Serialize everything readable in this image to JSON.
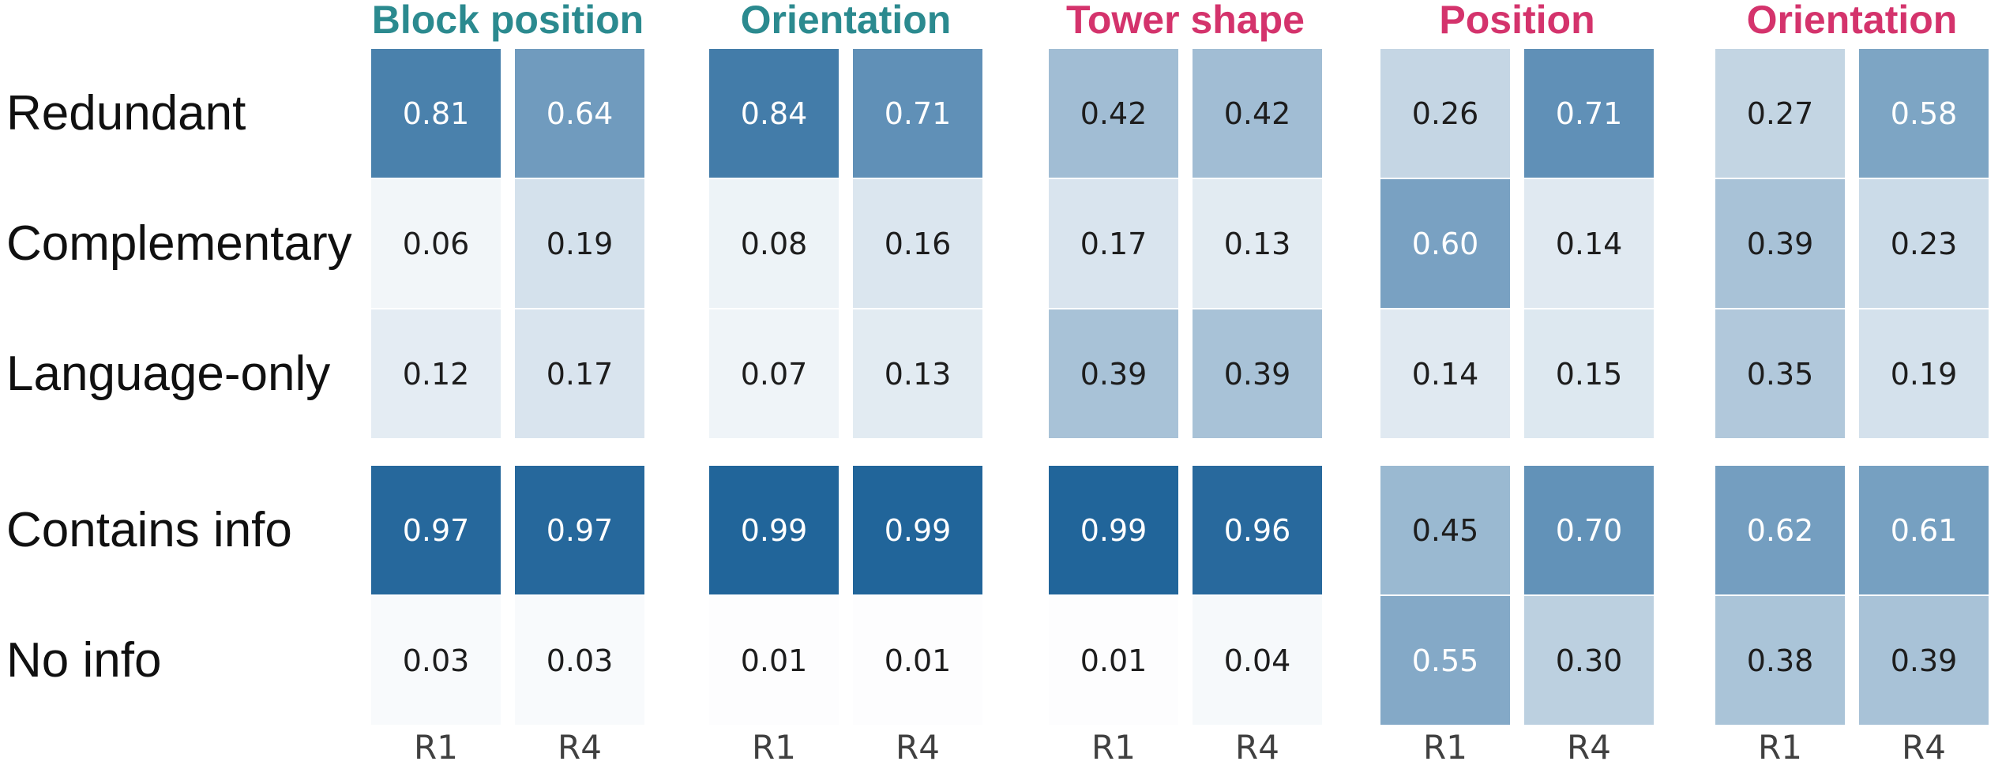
{
  "chart_data": {
    "type": "heatmap",
    "rows": [
      "Redundant",
      "Complementary",
      "Language-only",
      "Contains info",
      "No info"
    ],
    "row_sections": [
      3,
      2
    ],
    "columns": [
      "R1",
      "R4"
    ],
    "column_groups": [
      {
        "label": "Block position",
        "label_color": "#2b8a8f",
        "values": [
          [
            0.81,
            0.64
          ],
          [
            0.06,
            0.19
          ],
          [
            0.12,
            0.17
          ],
          [
            0.97,
            0.97
          ],
          [
            0.03,
            0.03
          ]
        ]
      },
      {
        "label": "Orientation",
        "label_color": "#2b8a8f",
        "values": [
          [
            0.84,
            0.71
          ],
          [
            0.08,
            0.16
          ],
          [
            0.07,
            0.13
          ],
          [
            0.99,
            0.99
          ],
          [
            0.01,
            0.01
          ]
        ]
      },
      {
        "label": "Tower shape",
        "label_color": "#d4336c",
        "values": [
          [
            0.42,
            0.42
          ],
          [
            0.17,
            0.13
          ],
          [
            0.39,
            0.39
          ],
          [
            0.99,
            0.96
          ],
          [
            0.01,
            0.04
          ]
        ]
      },
      {
        "label": "Position",
        "label_color": "#d4336c",
        "values": [
          [
            0.26,
            0.71
          ],
          [
            0.6,
            0.14
          ],
          [
            0.14,
            0.15
          ],
          [
            0.45,
            0.7
          ],
          [
            0.55,
            0.3
          ]
        ]
      },
      {
        "label": "Orientation",
        "label_color": "#d4336c",
        "values": [
          [
            0.27,
            0.58
          ],
          [
            0.39,
            0.23
          ],
          [
            0.35,
            0.19
          ],
          [
            0.62,
            0.61
          ],
          [
            0.38,
            0.39
          ]
        ]
      }
    ],
    "colormap": {
      "low": "#ffffff",
      "high": "#1f6399"
    },
    "text_colors": {
      "dark": "#1d1d1d",
      "light": "#ffffff",
      "light_threshold": 0.5
    },
    "value_format": "0.00",
    "grid": false,
    "legend": false
  }
}
